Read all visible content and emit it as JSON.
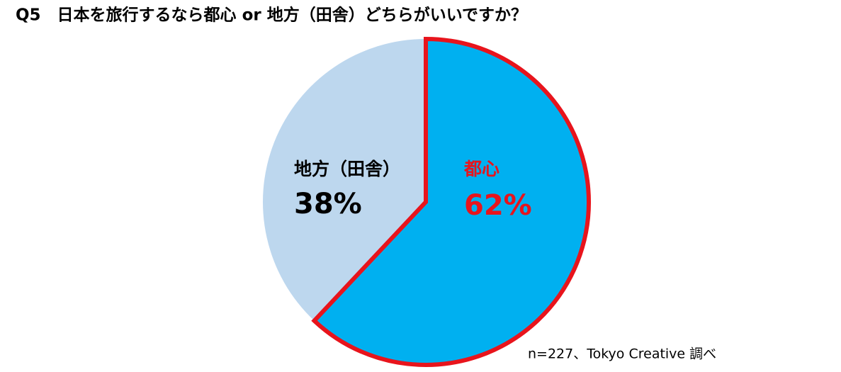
{
  "chart_data": {
    "type": "pie",
    "title": "Q5　日本を旅行するなら都心 or 地方（田舎）どちらがいいですか？",
    "categories": [
      "都心",
      "地方（田舎）"
    ],
    "values": [
      62,
      38
    ],
    "value_labels": [
      "62%",
      "38%"
    ],
    "colors": [
      "#00b0f0",
      "#bdd7ee"
    ],
    "edge_colors": [
      "#e8141c",
      "none"
    ],
    "label_colors": [
      "#e8141c",
      "#000000"
    ],
    "note": "n=227、Tokyo Creative 調べ"
  }
}
